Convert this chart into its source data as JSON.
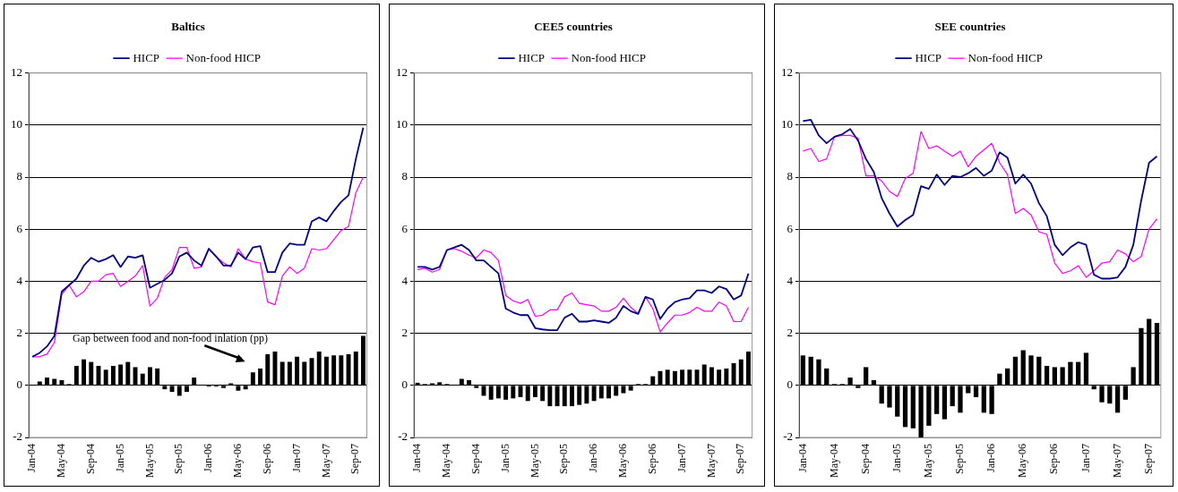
{
  "chart_data": [
    {
      "type": "line",
      "title": "Baltics",
      "categories": [
        "Jan-04",
        null,
        null,
        null,
        "May-04",
        null,
        null,
        null,
        "Sep-04",
        null,
        null,
        null,
        "Jan-05",
        null,
        null,
        null,
        "May-05",
        null,
        null,
        null,
        "Sep-05",
        null,
        null,
        null,
        "Jan-06",
        null,
        null,
        null,
        "May-06",
        null,
        null,
        null,
        "Sep-06",
        null,
        null,
        null,
        "Jan-07",
        null,
        null,
        null,
        "May-07",
        null,
        null,
        null,
        "Sep-07",
        null
      ],
      "series": [
        {
          "type": "bar",
          "color": "#000000",
          "values": [
            0,
            0.15,
            0.3,
            0.25,
            0.2,
            0.05,
            0.75,
            1.0,
            0.9,
            0.75,
            0.6,
            0.75,
            0.8,
            0.9,
            0.7,
            0.45,
            0.7,
            0.65,
            -0.15,
            -0.25,
            -0.4,
            -0.25,
            0.3,
            0,
            -0.05,
            -0.05,
            -0.1,
            0.08,
            -0.2,
            -0.15,
            0.5,
            0.65,
            1.2,
            1.3,
            0.9,
            0.9,
            1.1,
            0.9,
            1.05,
            1.3,
            1.1,
            1.15,
            1.15,
            1.2,
            1.3,
            1.9
          ]
        },
        {
          "name": "HICP",
          "color": "#000080",
          "values": [
            1.1,
            1.25,
            1.5,
            1.9,
            3.6,
            3.85,
            4.1,
            4.6,
            4.9,
            4.75,
            4.85,
            5.0,
            4.55,
            4.95,
            4.9,
            5.0,
            3.75,
            3.9,
            4.05,
            4.3,
            4.95,
            5.1,
            4.8,
            4.6,
            5.25,
            4.95,
            4.6,
            4.6,
            5.1,
            4.85,
            5.3,
            5.35,
            4.35,
            4.35,
            5.1,
            5.45,
            5.4,
            5.4,
            6.3,
            6.45,
            6.3,
            6.7,
            7.05,
            7.3,
            8.7,
            9.9
          ]
        },
        {
          "name": "Non-food HICP",
          "color": "#ff00ff",
          "values": [
            1.1,
            1.1,
            1.2,
            1.65,
            3.5,
            3.85,
            3.4,
            3.6,
            4.0,
            4.0,
            4.25,
            4.3,
            3.8,
            4.0,
            4.2,
            4.6,
            3.05,
            3.35,
            4.15,
            4.45,
            5.3,
            5.3,
            4.5,
            4.55,
            5.25,
            4.95,
            4.7,
            4.55,
            5.25,
            4.85,
            4.75,
            4.7,
            3.2,
            3.1,
            4.2,
            4.55,
            4.3,
            4.5,
            5.25,
            5.2,
            5.25,
            5.6,
            5.95,
            6.1,
            7.4,
            8.0
          ]
        }
      ],
      "ylim": [
        -2,
        12
      ],
      "yticks": [
        -2,
        0,
        2,
        4,
        6,
        8,
        10,
        12
      ],
      "grid": "y",
      "legend": "top",
      "annotations": [
        "Gap between food and non-food inlation (pp)"
      ]
    },
    {
      "type": "line",
      "title": "CEE5 countries",
      "categories": [
        "Jan-04",
        null,
        null,
        null,
        "May-04",
        null,
        null,
        null,
        "Sep-04",
        null,
        null,
        null,
        "Jan-05",
        null,
        null,
        null,
        "May-05",
        null,
        null,
        null,
        "Sep-05",
        null,
        null,
        null,
        "Jan-06",
        null,
        null,
        null,
        "May-06",
        null,
        null,
        null,
        "Sep-06",
        null,
        null,
        null,
        "Jan-07",
        null,
        null,
        null,
        "May-07",
        null,
        null,
        null,
        "Sep-07",
        null
      ],
      "series": [
        {
          "type": "bar",
          "color": "#000000",
          "values": [
            0.1,
            0.05,
            0.08,
            0.12,
            0.05,
            0,
            0.25,
            0.2,
            -0.1,
            -0.4,
            -0.55,
            -0.5,
            -0.55,
            -0.5,
            -0.45,
            -0.6,
            -0.45,
            -0.6,
            -0.8,
            -0.8,
            -0.8,
            -0.8,
            -0.75,
            -0.7,
            -0.6,
            -0.5,
            -0.5,
            -0.4,
            -0.3,
            -0.2,
            0.05,
            0.05,
            0.35,
            0.55,
            0.6,
            0.55,
            0.6,
            0.6,
            0.6,
            0.8,
            0.7,
            0.6,
            0.65,
            0.85,
            1.0,
            1.3
          ]
        },
        {
          "name": "HICP",
          "color": "#000080",
          "values": [
            4.55,
            4.55,
            4.45,
            4.55,
            5.2,
            5.3,
            5.4,
            5.2,
            4.8,
            4.8,
            4.55,
            4.3,
            2.95,
            2.8,
            2.7,
            2.7,
            2.2,
            2.15,
            2.12,
            2.12,
            2.6,
            2.75,
            2.45,
            2.45,
            2.5,
            2.45,
            2.4,
            2.6,
            3.05,
            2.85,
            2.75,
            3.4,
            3.3,
            2.55,
            2.95,
            3.2,
            3.3,
            3.35,
            3.65,
            3.65,
            3.55,
            3.8,
            3.7,
            3.3,
            3.45,
            4.3
          ]
        },
        {
          "name": "Non-food HICP",
          "color": "#ff00ff",
          "values": [
            4.45,
            4.5,
            4.35,
            4.45,
            5.2,
            5.25,
            5.15,
            5.0,
            4.9,
            5.2,
            5.1,
            4.8,
            3.45,
            3.25,
            3.15,
            3.3,
            2.65,
            2.7,
            2.9,
            2.9,
            3.4,
            3.55,
            3.15,
            3.1,
            3.05,
            2.85,
            2.85,
            3.0,
            3.35,
            3.0,
            2.75,
            3.4,
            2.95,
            2.05,
            2.4,
            2.7,
            2.7,
            2.8,
            3.0,
            2.85,
            2.85,
            3.2,
            3.05,
            2.45,
            2.45,
            3.0
          ]
        }
      ],
      "ylim": [
        -2,
        12
      ],
      "yticks": [
        -2,
        0,
        2,
        4,
        6,
        8,
        10,
        12
      ],
      "grid": "y",
      "legend": "top"
    },
    {
      "type": "line",
      "title": "SEE countries",
      "categories": [
        "Jan-04",
        null,
        null,
        null,
        "May-04",
        null,
        null,
        null,
        "Sep-04",
        null,
        null,
        null,
        "Jan-05",
        null,
        null,
        null,
        "May-05",
        null,
        null,
        null,
        "Sep-05",
        null,
        null,
        null,
        "Jan-06",
        null,
        null,
        null,
        "May-06",
        null,
        null,
        null,
        "Sep-06",
        null,
        null,
        null,
        "Jan-07",
        null,
        null,
        null,
        "May-07",
        null,
        null,
        null,
        "Sep-07",
        null
      ],
      "series": [
        {
          "type": "bar",
          "color": "#000000",
          "values": [
            1.15,
            1.1,
            1.0,
            0.65,
            0.05,
            0.05,
            0.3,
            -0.1,
            0.7,
            0.2,
            -0.7,
            -0.85,
            -1.2,
            -1.6,
            -1.65,
            -2.0,
            -1.55,
            -1.1,
            -1.3,
            -0.8,
            -1.05,
            -0.3,
            -0.45,
            -1.05,
            -1.1,
            0.45,
            0.65,
            1.1,
            1.35,
            1.15,
            1.1,
            0.75,
            0.7,
            0.7,
            0.9,
            0.9,
            1.25,
            -0.15,
            -0.65,
            -0.7,
            -1.05,
            -0.55,
            0.7,
            2.2,
            2.55,
            2.4
          ]
        },
        {
          "name": "HICP",
          "color": "#000080",
          "values": [
            10.15,
            10.2,
            9.6,
            9.3,
            9.55,
            9.65,
            9.85,
            9.4,
            8.7,
            8.2,
            7.2,
            6.6,
            6.1,
            6.35,
            6.55,
            7.65,
            7.55,
            8.1,
            7.7,
            8.05,
            8.0,
            8.15,
            8.35,
            8.05,
            8.25,
            8.95,
            8.75,
            7.75,
            8.1,
            7.75,
            7.0,
            6.5,
            5.4,
            5.0,
            5.3,
            5.5,
            5.4,
            4.25,
            4.1,
            4.1,
            4.15,
            4.55,
            5.4,
            7.1,
            8.55,
            8.8
          ]
        },
        {
          "name": "Non-food HICP",
          "color": "#ff00ff",
          "values": [
            9.0,
            9.1,
            8.6,
            8.7,
            9.55,
            9.6,
            9.6,
            9.5,
            8.05,
            8.05,
            7.85,
            7.45,
            7.25,
            7.95,
            8.15,
            9.75,
            9.1,
            9.2,
            9.0,
            8.8,
            9.0,
            8.4,
            8.8,
            9.05,
            9.3,
            8.55,
            8.1,
            6.6,
            6.8,
            6.55,
            5.9,
            5.8,
            4.7,
            4.3,
            4.4,
            4.6,
            4.15,
            4.4,
            4.7,
            4.75,
            5.2,
            5.05,
            4.75,
            4.95,
            6.0,
            6.4
          ]
        }
      ],
      "ylim": [
        -2,
        12
      ],
      "yticks": [
        -2,
        0,
        2,
        4,
        6,
        8,
        10,
        12
      ],
      "grid": "y",
      "legend": "top"
    }
  ]
}
